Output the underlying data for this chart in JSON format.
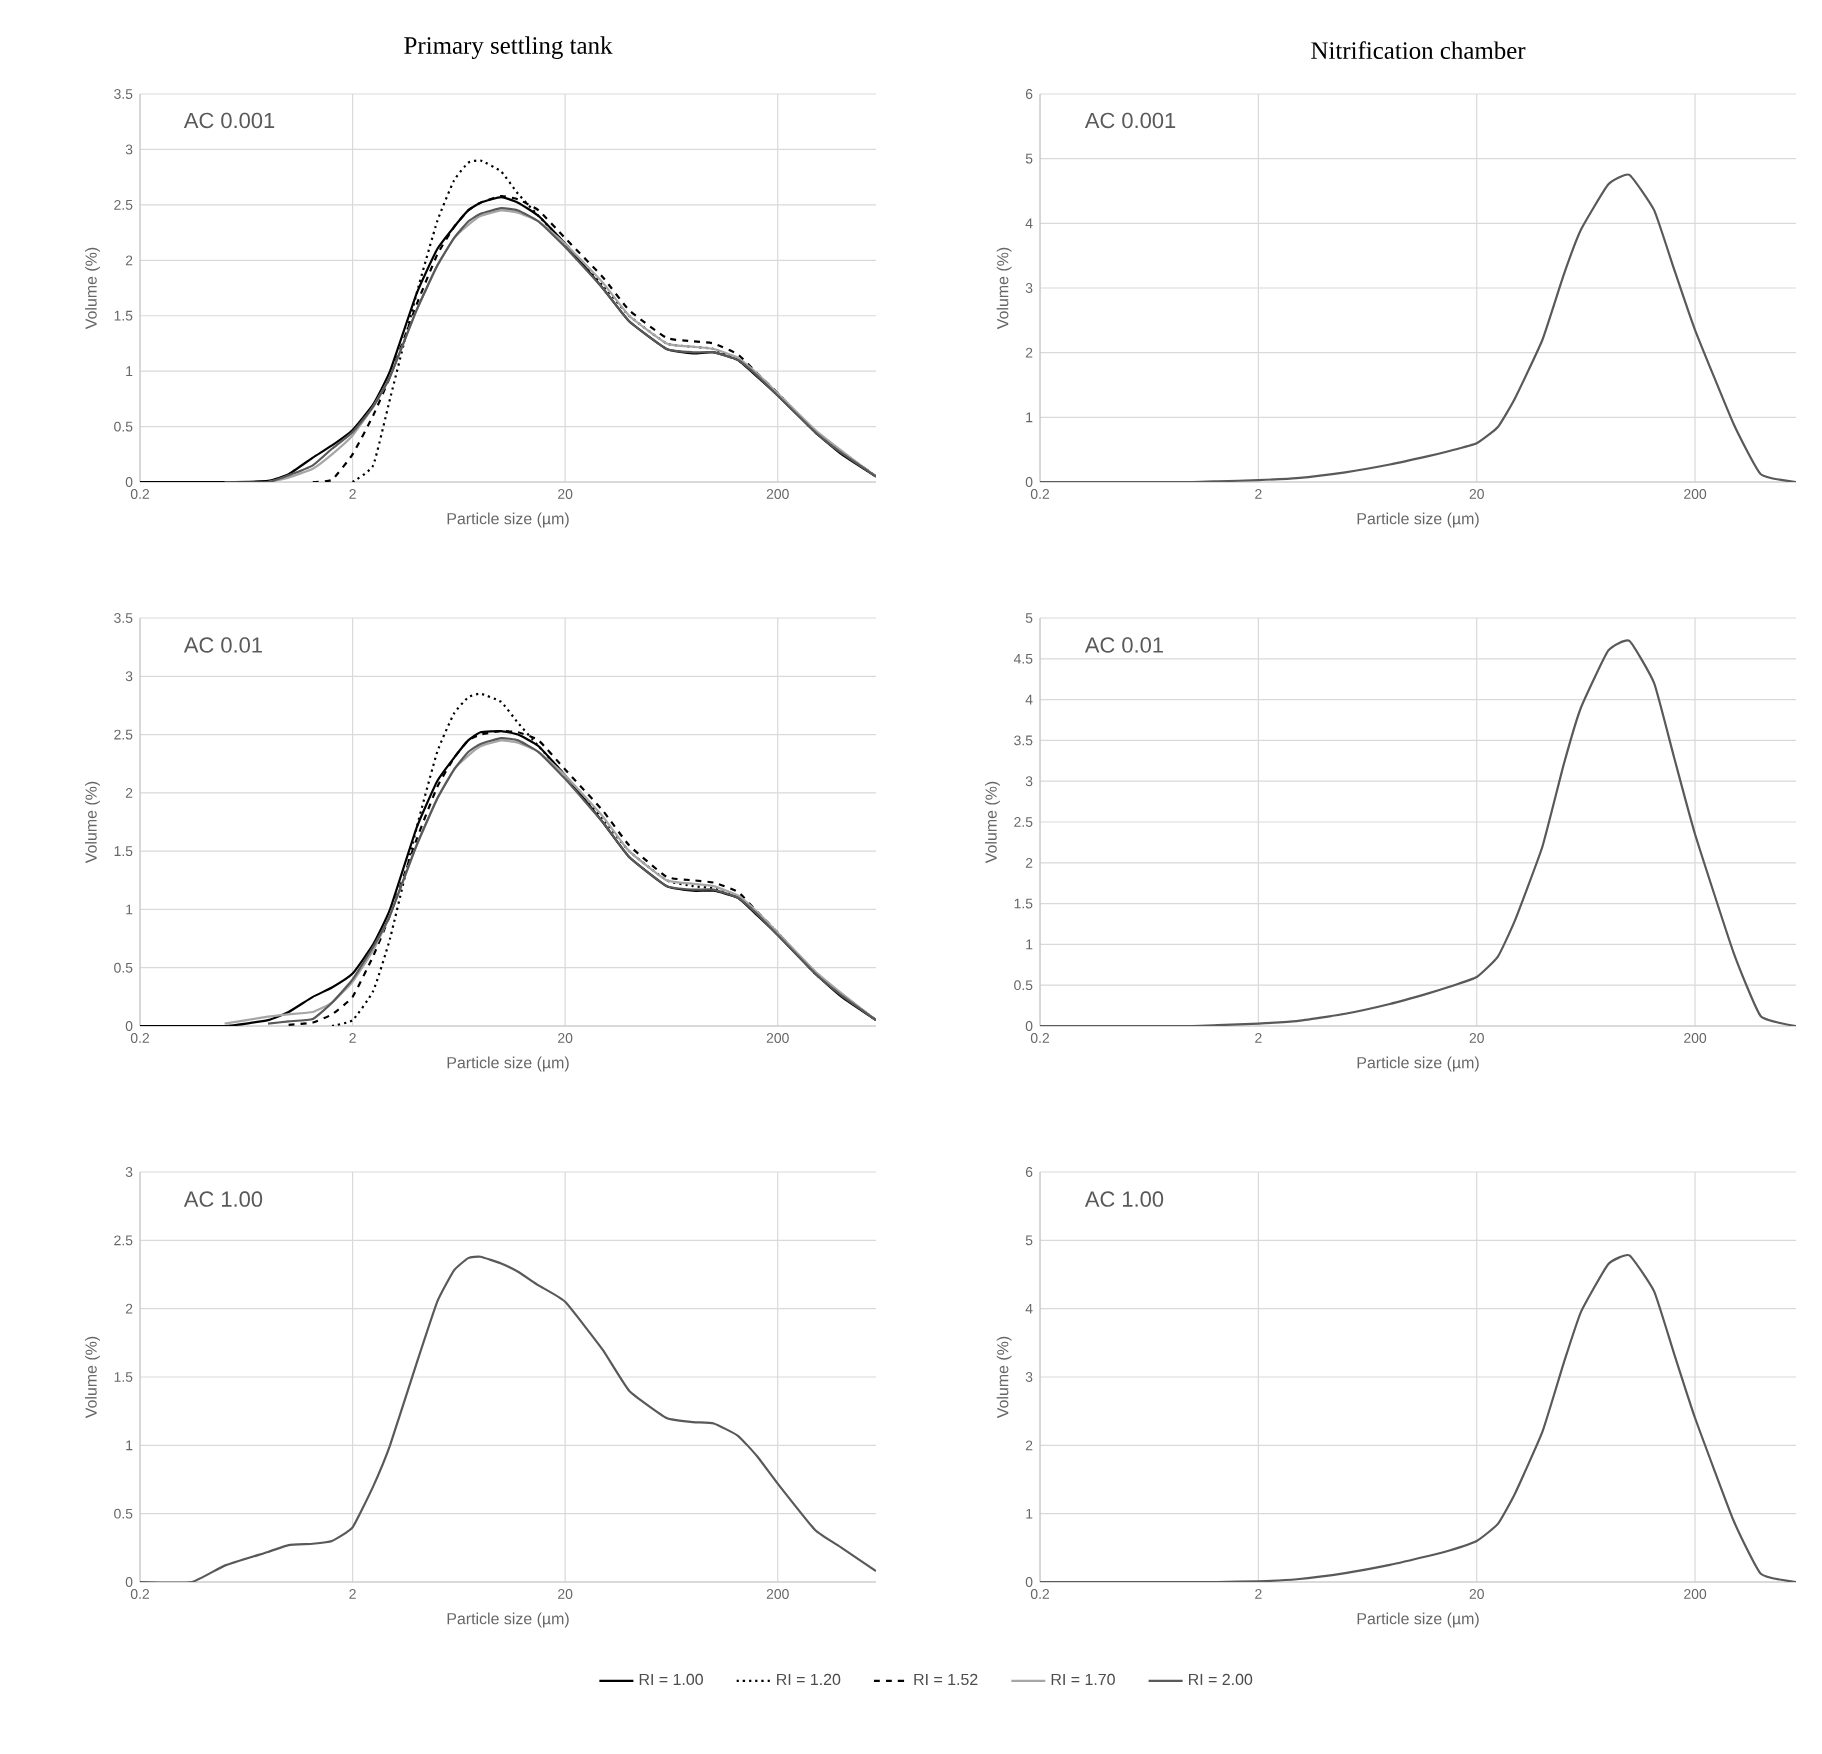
{
  "chart_data": [
    {
      "type": "line",
      "title": "Primary settling tank",
      "xlabel": "Particle size (µm)",
      "ylabel": "Volume (%)",
      "annotations": [
        "AC 0.001"
      ],
      "log": "x",
      "grid": true,
      "marker": "none",
      "legend": "bottom",
      "xlim": [
        0.2,
        580
      ],
      "xticks": [
        0.2,
        2,
        20,
        200
      ],
      "ylim": [
        0,
        3.5
      ],
      "yticks": [
        0,
        0.5,
        1,
        1.5,
        2,
        2.5,
        3,
        3.5
      ],
      "x": [
        0.2,
        0.5,
        0.8,
        1,
        1.3,
        1.6,
        2,
        2.5,
        3,
        4,
        5,
        6,
        7,
        8,
        10,
        12,
        15,
        20,
        30,
        40,
        60,
        80,
        100,
        130,
        160,
        200,
        300,
        400,
        580
      ],
      "series": [
        {
          "name": "RI = 1.00",
          "color": "#000000",
          "line_style": "solid",
          "values": [
            0,
            0,
            0.01,
            0.07,
            0.22,
            0.33,
            0.47,
            0.7,
            1.0,
            1.7,
            2.1,
            2.3,
            2.45,
            2.52,
            2.57,
            2.52,
            2.4,
            2.15,
            1.75,
            1.45,
            1.2,
            1.16,
            1.17,
            1.1,
            0.95,
            0.78,
            0.45,
            0.25,
            0.05
          ]
        },
        {
          "name": "RI = 1.20",
          "color": "#000000",
          "line_style": "dotted",
          "values": [
            null,
            null,
            null,
            null,
            null,
            null,
            0,
            0.15,
            0.75,
            1.7,
            2.35,
            2.72,
            2.88,
            2.9,
            2.8,
            2.6,
            2.4,
            2.15,
            1.78,
            1.5,
            1.25,
            1.22,
            1.2,
            1.1,
            0.97,
            0.8,
            0.45,
            0.27,
            0.05
          ]
        },
        {
          "name": "RI = 1.52",
          "color": "#000000",
          "line_style": "dashed",
          "values": [
            null,
            null,
            null,
            null,
            0,
            0.02,
            0.25,
            0.6,
            0.95,
            1.6,
            2.05,
            2.3,
            2.45,
            2.52,
            2.58,
            2.55,
            2.45,
            2.2,
            1.85,
            1.55,
            1.3,
            1.27,
            1.25,
            1.15,
            0.98,
            0.8,
            0.45,
            0.27,
            0.05
          ]
        },
        {
          "name": "RI = 1.70",
          "color": "#a6a6a6",
          "line_style": "solid",
          "values": [
            null,
            null,
            0,
            0.04,
            0.12,
            0.25,
            0.42,
            0.68,
            0.95,
            1.55,
            1.95,
            2.2,
            2.32,
            2.4,
            2.45,
            2.43,
            2.35,
            2.15,
            1.8,
            1.5,
            1.25,
            1.22,
            1.2,
            1.12,
            0.98,
            0.8,
            0.47,
            0.28,
            0.05
          ]
        },
        {
          "name": "RI = 2.00",
          "color": "#595959",
          "line_style": "solid",
          "values": [
            null,
            0,
            0,
            0.06,
            0.15,
            0.3,
            0.45,
            0.68,
            0.95,
            1.55,
            1.95,
            2.2,
            2.35,
            2.42,
            2.47,
            2.45,
            2.35,
            2.12,
            1.75,
            1.45,
            1.2,
            1.17,
            1.17,
            1.1,
            0.96,
            0.78,
            0.45,
            0.26,
            0.05
          ]
        }
      ]
    },
    {
      "type": "line",
      "title": "Nitrification chamber",
      "xlabel": "Particle size (µm)",
      "ylabel": "Volume (%)",
      "annotations": [
        "AC 0.001"
      ],
      "log": "x",
      "grid": true,
      "marker": "none",
      "xlim": [
        0.2,
        580
      ],
      "xticks": [
        0.2,
        2,
        20,
        200
      ],
      "ylim": [
        0,
        6
      ],
      "yticks": [
        0,
        1,
        2,
        3,
        4,
        5,
        6
      ],
      "x": [
        0.2,
        0.5,
        1,
        1.3,
        2,
        3,
        5,
        8,
        12,
        15,
        20,
        25,
        30,
        40,
        50,
        60,
        80,
        100,
        130,
        160,
        200,
        300,
        400,
        580
      ],
      "series": [
        {
          "color": "#595959",
          "line_style": "solid",
          "values": [
            0,
            0,
            0,
            0.01,
            0.03,
            0.06,
            0.15,
            0.27,
            0.4,
            0.48,
            0.6,
            0.85,
            1.3,
            2.2,
            3.2,
            3.9,
            4.6,
            4.75,
            4.2,
            3.3,
            2.35,
            0.9,
            0.12,
            0
          ]
        }
      ]
    },
    {
      "type": "line",
      "xlabel": "Particle size (µm)",
      "ylabel": "Volume (%)",
      "annotations": [
        "AC 0.01"
      ],
      "log": "x",
      "grid": true,
      "marker": "none",
      "xlim": [
        0.2,
        580
      ],
      "xticks": [
        0.2,
        2,
        20,
        200
      ],
      "ylim": [
        0,
        3.5
      ],
      "yticks": [
        0,
        0.5,
        1,
        1.5,
        2,
        2.5,
        3,
        3.5
      ],
      "x": [
        0.2,
        0.5,
        0.8,
        1,
        1.3,
        1.6,
        2,
        2.5,
        3,
        4,
        5,
        6,
        7,
        8,
        10,
        12,
        15,
        20,
        30,
        40,
        60,
        80,
        100,
        130,
        160,
        200,
        300,
        400,
        580
      ],
      "series": [
        {
          "color": "#000000",
          "line_style": "solid",
          "values": [
            0,
            0,
            0.05,
            0.12,
            0.25,
            0.33,
            0.45,
            0.7,
            1.0,
            1.7,
            2.1,
            2.3,
            2.45,
            2.52,
            2.53,
            2.5,
            2.4,
            2.15,
            1.75,
            1.45,
            1.2,
            1.16,
            1.16,
            1.1,
            0.95,
            0.78,
            0.45,
            0.25,
            0.05
          ]
        },
        {
          "color": "#000000",
          "line_style": "dotted",
          "values": [
            null,
            null,
            null,
            null,
            null,
            0,
            0.05,
            0.3,
            0.75,
            1.7,
            2.35,
            2.68,
            2.82,
            2.85,
            2.78,
            2.6,
            2.4,
            2.15,
            1.78,
            1.5,
            1.25,
            1.2,
            1.18,
            1.1,
            0.97,
            0.8,
            0.45,
            0.27,
            0.05
          ]
        },
        {
          "color": "#000000",
          "line_style": "dashed",
          "values": [
            null,
            null,
            null,
            0.01,
            0.03,
            0.1,
            0.25,
            0.6,
            0.95,
            1.6,
            2.05,
            2.3,
            2.45,
            2.5,
            2.53,
            2.52,
            2.45,
            2.2,
            1.85,
            1.55,
            1.28,
            1.25,
            1.23,
            1.15,
            0.98,
            0.8,
            0.45,
            0.27,
            0.05
          ]
        },
        {
          "color": "#a6a6a6",
          "line_style": "solid",
          "values": [
            null,
            0.02,
            0.08,
            0.1,
            0.12,
            0.2,
            0.38,
            0.65,
            0.95,
            1.55,
            1.95,
            2.2,
            2.32,
            2.4,
            2.45,
            2.43,
            2.35,
            2.15,
            1.8,
            1.5,
            1.25,
            1.22,
            1.2,
            1.12,
            0.98,
            0.8,
            0.47,
            0.28,
            0.05
          ]
        },
        {
          "color": "#595959",
          "line_style": "solid",
          "values": [
            null,
            null,
            0.02,
            0.04,
            0.06,
            0.2,
            0.4,
            0.68,
            0.95,
            1.55,
            1.95,
            2.2,
            2.35,
            2.42,
            2.47,
            2.45,
            2.35,
            2.12,
            1.75,
            1.45,
            1.2,
            1.17,
            1.17,
            1.1,
            0.96,
            0.78,
            0.45,
            0.26,
            0.05
          ]
        }
      ]
    },
    {
      "type": "line",
      "xlabel": "Particle size (µm)",
      "ylabel": "Volume (%)",
      "annotations": [
        "AC 0.01"
      ],
      "log": "x",
      "grid": true,
      "marker": "none",
      "xlim": [
        0.2,
        580
      ],
      "xticks": [
        0.2,
        2,
        20,
        200
      ],
      "ylim": [
        0,
        5
      ],
      "yticks": [
        0,
        0.5,
        1,
        1.5,
        2,
        2.5,
        3,
        3.5,
        4,
        4.5,
        5
      ],
      "x": [
        0.2,
        0.5,
        1,
        1.3,
        2,
        3,
        5,
        8,
        12,
        15,
        20,
        25,
        30,
        40,
        50,
        60,
        80,
        100,
        130,
        160,
        200,
        300,
        400,
        580
      ],
      "series": [
        {
          "color": "#595959",
          "line_style": "solid",
          "values": [
            0,
            0,
            0,
            0.01,
            0.03,
            0.06,
            0.15,
            0.27,
            0.4,
            0.48,
            0.6,
            0.85,
            1.3,
            2.2,
            3.2,
            3.9,
            4.6,
            4.72,
            4.2,
            3.3,
            2.35,
            0.9,
            0.12,
            0
          ]
        }
      ]
    },
    {
      "type": "line",
      "xlabel": "Particle size (µm)",
      "ylabel": "Volume (%)",
      "annotations": [
        "AC 1.00"
      ],
      "log": "x",
      "grid": true,
      "marker": "none",
      "xlim": [
        0.2,
        580
      ],
      "xticks": [
        0.2,
        2,
        20,
        200
      ],
      "ylim": [
        0,
        3
      ],
      "yticks": [
        0,
        0.5,
        1,
        1.5,
        2,
        2.5,
        3
      ],
      "x": [
        0.2,
        0.35,
        0.5,
        0.8,
        1,
        1.3,
        1.6,
        2,
        2.5,
        3,
        4,
        5,
        6,
        7,
        8,
        10,
        12,
        15,
        20,
        30,
        40,
        60,
        80,
        100,
        130,
        160,
        200,
        300,
        400,
        580
      ],
      "series": [
        {
          "color": "#595959",
          "line_style": "solid",
          "values": [
            0,
            0,
            0.12,
            0.22,
            0.27,
            0.28,
            0.3,
            0.4,
            0.7,
            1.0,
            1.6,
            2.05,
            2.28,
            2.37,
            2.38,
            2.33,
            2.27,
            2.17,
            2.05,
            1.7,
            1.4,
            1.2,
            1.17,
            1.16,
            1.07,
            0.92,
            0.72,
            0.38,
            0.25,
            0.08
          ]
        }
      ]
    },
    {
      "type": "line",
      "xlabel": "Particle size (µm)",
      "ylabel": "Volume (%)",
      "annotations": [
        "AC 1.00"
      ],
      "log": "x",
      "grid": true,
      "marker": "none",
      "xlim": [
        0.2,
        580
      ],
      "xticks": [
        0.2,
        2,
        20,
        200
      ],
      "ylim": [
        0,
        6
      ],
      "yticks": [
        0,
        1,
        2,
        3,
        4,
        5,
        6
      ],
      "x": [
        0.2,
        0.5,
        1,
        1.3,
        2,
        3,
        5,
        8,
        12,
        15,
        20,
        25,
        30,
        40,
        50,
        60,
        80,
        100,
        130,
        160,
        200,
        300,
        400,
        580
      ],
      "series": [
        {
          "color": "#595959",
          "line_style": "solid",
          "values": [
            0,
            0,
            0,
            0,
            0.01,
            0.04,
            0.13,
            0.25,
            0.38,
            0.46,
            0.6,
            0.85,
            1.3,
            2.2,
            3.2,
            3.95,
            4.65,
            4.78,
            4.25,
            3.35,
            2.4,
            0.9,
            0.12,
            0
          ]
        }
      ]
    }
  ]
}
